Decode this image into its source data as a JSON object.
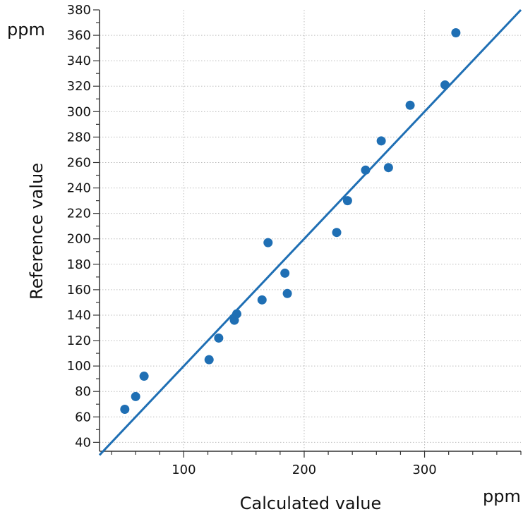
{
  "chart_data": {
    "type": "scatter",
    "title": "",
    "xlabel": "Calculated value",
    "ylabel": "Reference value",
    "x_unit": "ppm",
    "y_unit": "ppm",
    "xlim": [
      30,
      380
    ],
    "ylim": [
      33,
      380
    ],
    "x_ticks": [
      100,
      200,
      300
    ],
    "y_ticks": [
      40,
      60,
      80,
      100,
      120,
      140,
      160,
      180,
      200,
      220,
      240,
      260,
      280,
      300,
      320,
      340,
      360,
      380
    ],
    "grid": true,
    "legend": "none",
    "color": "#1f6fb4",
    "series": [
      {
        "points": [
          {
            "x": 51,
            "y": 66
          },
          {
            "x": 60,
            "y": 76
          },
          {
            "x": 67,
            "y": 92
          },
          {
            "x": 121,
            "y": 105
          },
          {
            "x": 129,
            "y": 122
          },
          {
            "x": 142,
            "y": 136
          },
          {
            "x": 144,
            "y": 141
          },
          {
            "x": 165,
            "y": 152
          },
          {
            "x": 170,
            "y": 197
          },
          {
            "x": 184,
            "y": 173
          },
          {
            "x": 186,
            "y": 157
          },
          {
            "x": 227,
            "y": 205
          },
          {
            "x": 236,
            "y": 230
          },
          {
            "x": 251,
            "y": 254
          },
          {
            "x": 264,
            "y": 277
          },
          {
            "x": 270,
            "y": 256
          },
          {
            "x": 288,
            "y": 305
          },
          {
            "x": 317,
            "y": 321
          },
          {
            "x": 326,
            "y": 362
          }
        ]
      }
    ],
    "fit_line": {
      "x": [
        30,
        380
      ],
      "y": [
        30,
        380
      ]
    }
  }
}
